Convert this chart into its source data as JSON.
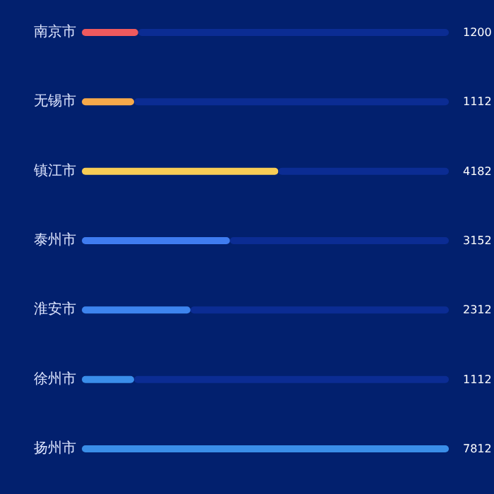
{
  "chart_data": {
    "type": "bar",
    "orientation": "horizontal",
    "categories": [
      "南京市",
      "无锡市",
      "镇江市",
      "泰州市",
      "淮安市",
      "徐州市",
      "扬州市"
    ],
    "stacked": true,
    "series": [
      {
        "colors": [
          "#ee5a5e",
          "#f7a94a",
          "#f8cd55",
          "#3f7cf0",
          "#3d84ee",
          "#3a8eea",
          "#3a8ee8"
        ],
        "values": [
          1200,
          1112,
          4182,
          3152,
          2312,
          1112,
          7812
        ],
        "value_labels": [
          "1200",
          "1112",
          "4182",
          "3152",
          "2312",
          "1112",
          "7812"
        ]
      },
      {
        "color": "#0b2c93",
        "values": [
          6612,
          6700,
          3630,
          4660,
          5500,
          6700,
          0
        ]
      }
    ]
  }
}
